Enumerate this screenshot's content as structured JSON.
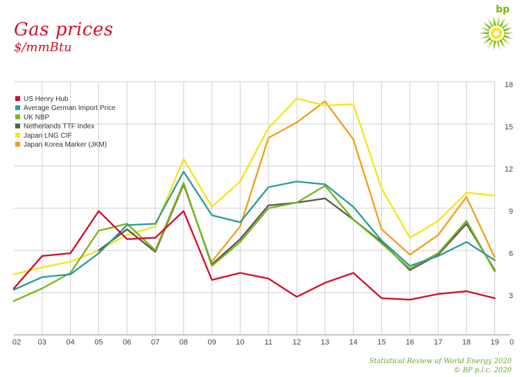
{
  "header": {
    "title": "Gas prices",
    "subtitle": "$/mmBtu",
    "brand": "bp"
  },
  "footer": {
    "line1": "Statistical Review of World Energy 2020",
    "line2": "© BP p.l.c. 2020"
  },
  "colors": {
    "us_henry_hub": "#d4102a",
    "german_import": "#2e9e96",
    "uk_nbp": "#7ab51d",
    "netherlands_ttf": "#5a5a55",
    "japan_lng": "#f6e51a",
    "jkm": "#f0a020",
    "title": "#d4102a",
    "logo_green": "#7ab800",
    "logo_yellow": "#f6e51a"
  },
  "icons": {
    "logo": "bp-helios-logo-icon"
  },
  "chart_data": {
    "type": "line",
    "title": "Gas prices",
    "ylabel": "$/mmBtu",
    "categories": [
      "02",
      "03",
      "04",
      "05",
      "06",
      "07",
      "08",
      "09",
      "10",
      "11",
      "12",
      "13",
      "14",
      "15",
      "16",
      "17",
      "18",
      "19"
    ],
    "x_axis_end_label": "0",
    "ylim": [
      0,
      18
    ],
    "yticks": [
      3,
      6,
      9,
      12,
      15,
      18
    ],
    "grid": true,
    "legend_position": "top-left",
    "series": [
      {
        "name": "US Henry Hub",
        "color_key": "us_henry_hub",
        "values": [
          3.3,
          5.6,
          5.8,
          8.8,
          6.8,
          6.9,
          8.8,
          3.9,
          4.4,
          4.0,
          2.7,
          3.7,
          4.4,
          2.6,
          2.5,
          2.9,
          3.1,
          2.6
        ]
      },
      {
        "name": "Average German Import Price",
        "color_key": "german_import",
        "values": [
          3.2,
          4.1,
          4.3,
          5.8,
          7.8,
          7.9,
          11.6,
          8.5,
          8.0,
          10.5,
          10.9,
          10.7,
          9.1,
          6.7,
          4.9,
          5.6,
          6.6,
          5.3
        ]
      },
      {
        "name": "UK NBP",
        "color_key": "uk_nbp",
        "values": [
          2.4,
          3.3,
          4.4,
          7.4,
          7.9,
          6.0,
          10.8,
          4.9,
          6.6,
          9.0,
          9.4,
          10.6,
          8.2,
          6.5,
          4.7,
          5.8,
          8.1,
          4.5
        ]
      },
      {
        "name": "Netherlands TTF Index",
        "color_key": "netherlands_ttf",
        "values": [
          null,
          null,
          null,
          6.0,
          7.5,
          5.9,
          10.7,
          5.0,
          6.8,
          9.2,
          9.4,
          9.7,
          8.2,
          6.6,
          4.6,
          5.7,
          7.9,
          4.6
        ]
      },
      {
        "name": "Japan LNG CIF",
        "color_key": "japan_lng",
        "values": [
          4.3,
          4.8,
          5.2,
          6.0,
          7.1,
          7.7,
          12.5,
          9.1,
          10.9,
          14.7,
          16.8,
          16.3,
          16.4,
          10.4,
          6.9,
          8.1,
          10.1,
          9.9
        ]
      },
      {
        "name": "Japan Korea Marker (JKM)",
        "color_key": "jkm",
        "values": [
          null,
          null,
          null,
          null,
          null,
          null,
          null,
          5.2,
          7.7,
          14.0,
          15.1,
          16.6,
          13.9,
          7.5,
          5.7,
          7.1,
          9.8,
          5.5
        ]
      }
    ]
  }
}
